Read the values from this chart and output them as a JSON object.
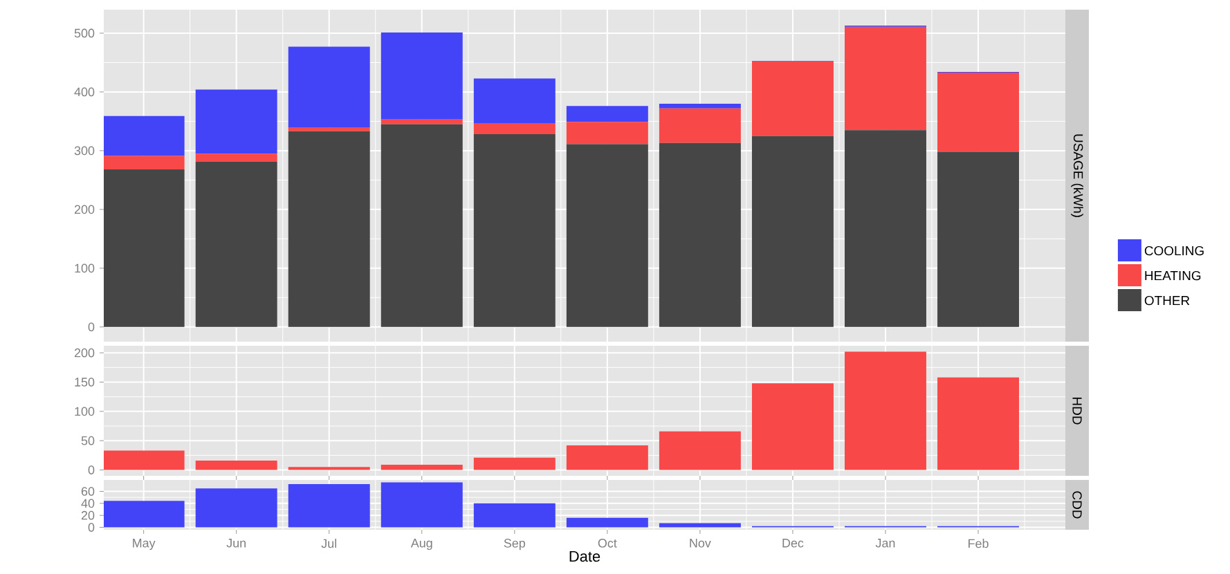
{
  "chart_data": [
    {
      "type": "bar",
      "stacked": true,
      "ylabel": "USAGE (kWh)",
      "categories": [
        null,
        null,
        null,
        null,
        null,
        null,
        null,
        null,
        null,
        null
      ],
      "series": [
        {
          "name": "OTHER",
          "color": "#464646",
          "values": [
            268,
            281,
            333,
            345,
            328,
            311,
            313,
            325,
            335,
            298
          ]
        },
        {
          "name": "HEATING",
          "color": "#f94848",
          "values": [
            23,
            14,
            6,
            8,
            18,
            38,
            59,
            127,
            176,
            135
          ]
        },
        {
          "name": "COOLING",
          "color": "#4343f8",
          "values": [
            68,
            109,
            138,
            148,
            77,
            27,
            8,
            1,
            2,
            1
          ]
        }
      ],
      "ylim": [
        -25,
        540
      ],
      "yticks": [
        0,
        100,
        200,
        300,
        400,
        500
      ],
      "grid": true,
      "legend": "right",
      "tick_labels": "y"
    },
    {
      "type": "bar",
      "ylabel": "HDD",
      "categories": [
        null,
        null,
        null,
        null,
        null,
        null,
        null,
        null,
        null,
        null
      ],
      "values": [
        33,
        16,
        5,
        9,
        21,
        42,
        66,
        148,
        202,
        158
      ],
      "color": "#f94848",
      "ylim": [
        -10,
        212
      ],
      "yticks": [
        0,
        50,
        100,
        150,
        200
      ],
      "grid": true,
      "tick_labels": "y"
    },
    {
      "type": "bar",
      "ylabel": "CDD",
      "xlabel": "Date",
      "categories": [
        "May",
        "Jun",
        "Jul",
        "Aug",
        "Sep",
        "Oct",
        "Nov",
        "Dec",
        "Jan",
        "Feb"
      ],
      "values": [
        44,
        65,
        72,
        75,
        40,
        16,
        7,
        2,
        2,
        2
      ],
      "color": "#4343f8",
      "ylim": [
        -4,
        79
      ],
      "yticks": [
        0,
        20,
        40,
        60
      ],
      "grid": true
    }
  ]
}
